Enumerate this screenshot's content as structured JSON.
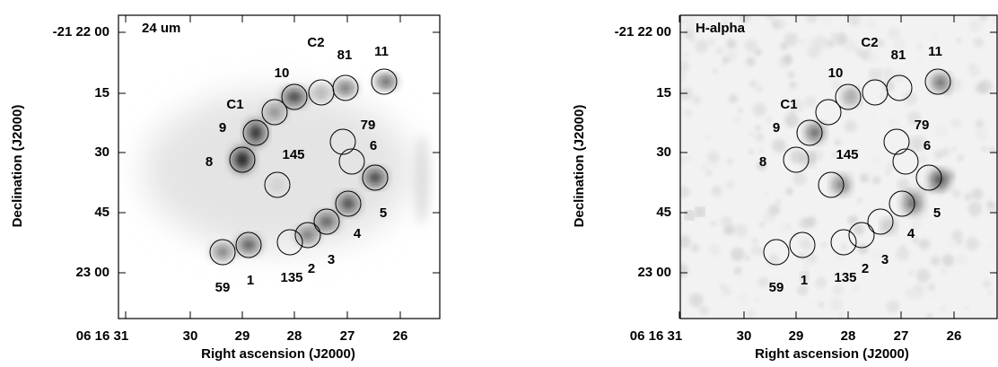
{
  "panels": [
    {
      "band": "24 um",
      "y_axis_label": "Declination (J2000)",
      "x_axis_label": "Right ascension (J2000)",
      "yticks": [
        "-21 22 00",
        "15",
        "30",
        "45",
        "23 00"
      ],
      "xticks": [
        "06 16 31",
        "30",
        "29",
        "28",
        "27",
        "26"
      ],
      "labels": [
        "C2",
        "81",
        "11",
        "10",
        "C1",
        "9",
        "79",
        "6",
        "145",
        "8",
        "5",
        "4",
        "3",
        "2",
        "135",
        "59",
        "1"
      ]
    },
    {
      "band": "H-alpha",
      "y_axis_label": "Declination (J2000)",
      "x_axis_label": "Right ascension (J2000)",
      "yticks": [
        "-21 22 00",
        "15",
        "30",
        "45",
        "23 00"
      ],
      "xticks": [
        "06 16 31",
        "30",
        "29",
        "28",
        "27",
        "26"
      ],
      "labels": [
        "C2",
        "81",
        "11",
        "10",
        "C1",
        "9",
        "79",
        "6",
        "145",
        "8",
        "5",
        "4",
        "3",
        "2",
        "135",
        "59",
        "1"
      ]
    }
  ]
}
